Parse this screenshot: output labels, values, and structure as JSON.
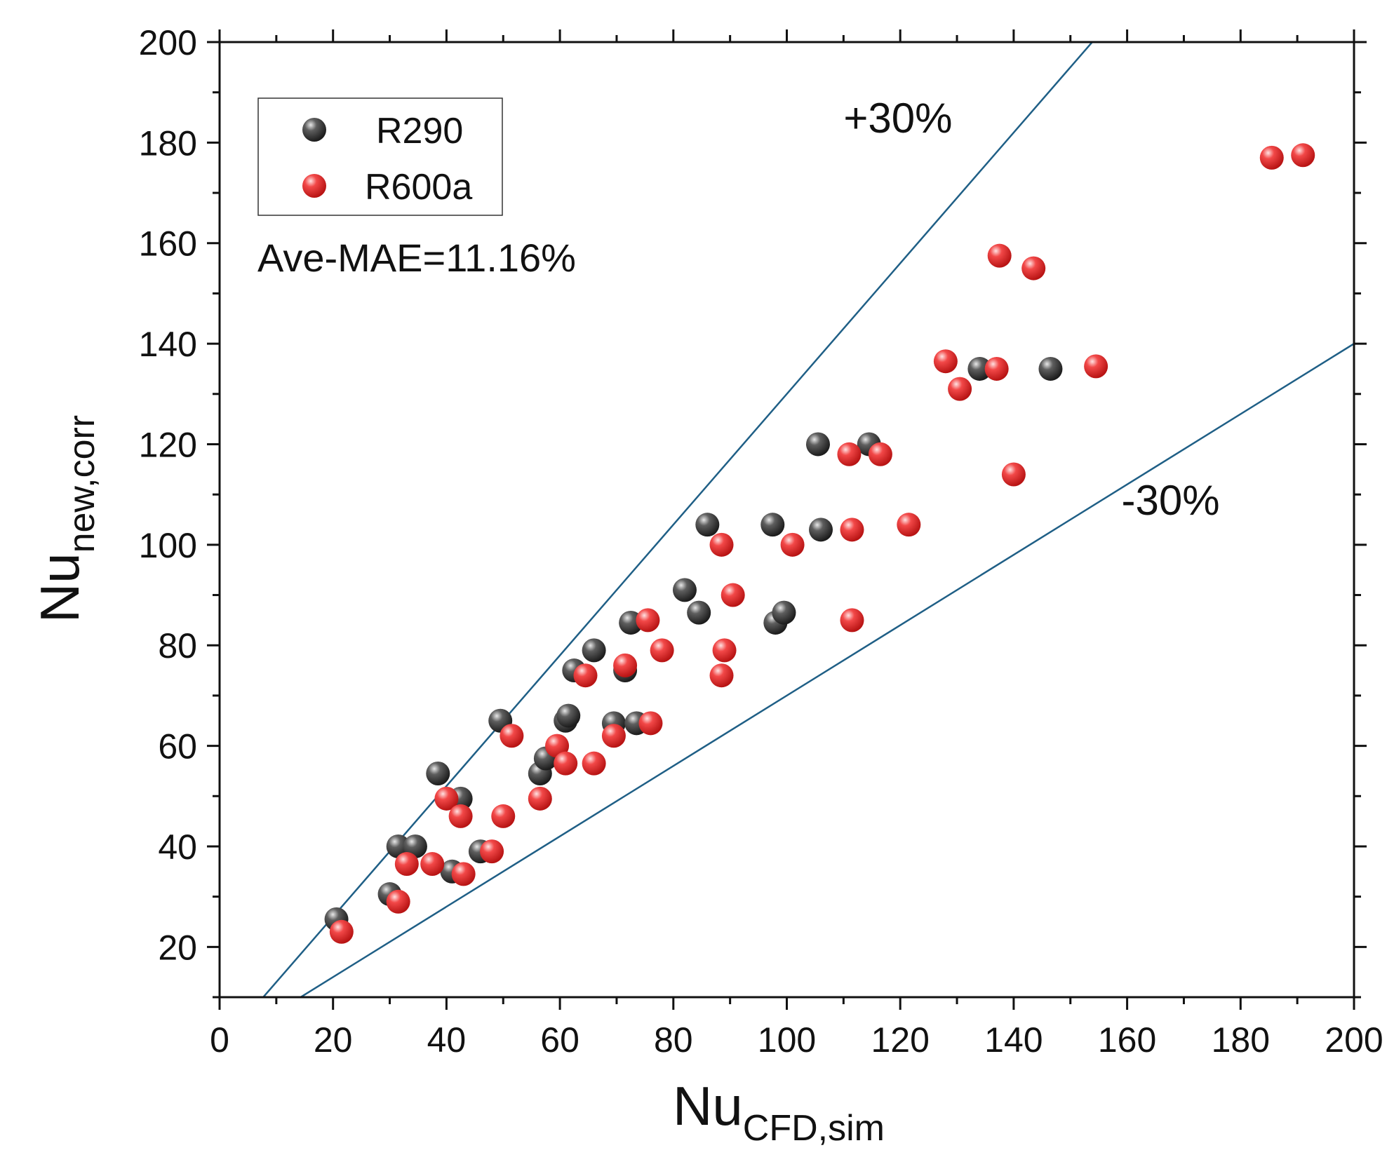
{
  "chart_data": {
    "type": "scatter",
    "title": "",
    "xlabel": "Nu",
    "xlabel_subscript": "CFD,sim",
    "ylabel": "Nu",
    "ylabel_subscript": "new,corr",
    "xlim": [
      0,
      200
    ],
    "ylim": [
      10,
      200
    ],
    "xticks": [
      0,
      20,
      40,
      60,
      80,
      100,
      120,
      140,
      160,
      180,
      200
    ],
    "yticks": [
      20,
      40,
      60,
      80,
      100,
      120,
      140,
      160,
      180,
      200
    ],
    "legend_position": "top-left",
    "annotation": "Ave-MAE=11.16%",
    "reference_lines": [
      {
        "name": "+30%",
        "slope": 1.3,
        "intercept": 0,
        "label": "+30%",
        "label_at": [
          110,
          182
        ]
      },
      {
        "name": "-30%",
        "slope": 0.7,
        "intercept": 0,
        "label": "-30%",
        "label_at": [
          159,
          106
        ]
      }
    ],
    "line_color": "#1f5f86",
    "series": [
      {
        "name": "R290",
        "color": "#4a4a4a",
        "points": [
          [
            20.6,
            25.5
          ],
          [
            30,
            30.5
          ],
          [
            31.5,
            40
          ],
          [
            34.5,
            40
          ],
          [
            41,
            35
          ],
          [
            42.5,
            49.5
          ],
          [
            38.5,
            54.5
          ],
          [
            46,
            39
          ],
          [
            49.5,
            65
          ],
          [
            56.5,
            54.5
          ],
          [
            57.5,
            57.5
          ],
          [
            61,
            65
          ],
          [
            61.5,
            66
          ],
          [
            62.5,
            75
          ],
          [
            66,
            79
          ],
          [
            69.5,
            64.5
          ],
          [
            71.5,
            75
          ],
          [
            72.5,
            84.5
          ],
          [
            73.5,
            64.5
          ],
          [
            82,
            91
          ],
          [
            84.5,
            86.5
          ],
          [
            86,
            104
          ],
          [
            97.5,
            104
          ],
          [
            98,
            84.5
          ],
          [
            99.5,
            86.5
          ],
          [
            105.5,
            120
          ],
          [
            106,
            103
          ],
          [
            114.5,
            120
          ],
          [
            134,
            135
          ],
          [
            146.5,
            135
          ]
        ]
      },
      {
        "name": "R600a",
        "color": "#ee3535",
        "points": [
          [
            21.5,
            23
          ],
          [
            31.5,
            29
          ],
          [
            33,
            36.5
          ],
          [
            37.5,
            36.5
          ],
          [
            40,
            49.5
          ],
          [
            42.5,
            46
          ],
          [
            43,
            34.5
          ],
          [
            48,
            39
          ],
          [
            50,
            46
          ],
          [
            51.5,
            62
          ],
          [
            56.5,
            49.5
          ],
          [
            59.5,
            60
          ],
          [
            61,
            56.5
          ],
          [
            64.5,
            74
          ],
          [
            66,
            56.5
          ],
          [
            69.5,
            62
          ],
          [
            71.5,
            76
          ],
          [
            75.5,
            85
          ],
          [
            76,
            64.5
          ],
          [
            78,
            79
          ],
          [
            88.5,
            100
          ],
          [
            89,
            79
          ],
          [
            88.5,
            74
          ],
          [
            90.5,
            90
          ],
          [
            101,
            100
          ],
          [
            111,
            118
          ],
          [
            111.5,
            103
          ],
          [
            111.5,
            85
          ],
          [
            116.5,
            118
          ],
          [
            121.5,
            104
          ],
          [
            128,
            136.5
          ],
          [
            130.5,
            131
          ],
          [
            137,
            135
          ],
          [
            137.5,
            157.5
          ],
          [
            140,
            114
          ],
          [
            143.5,
            155
          ],
          [
            154.5,
            135.5
          ],
          [
            185.5,
            177
          ],
          [
            191,
            177.5
          ]
        ]
      }
    ]
  }
}
